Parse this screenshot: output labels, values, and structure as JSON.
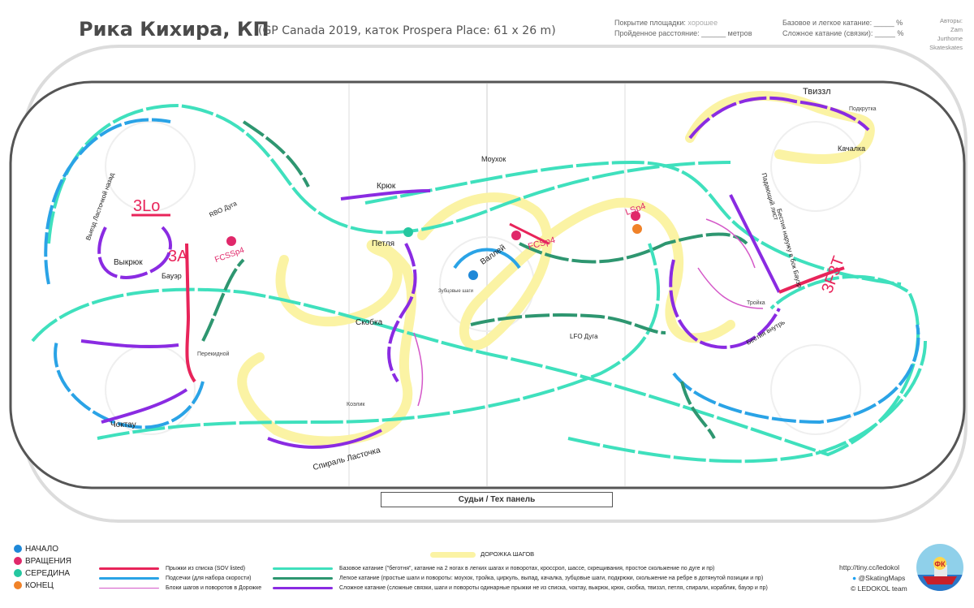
{
  "header": {
    "title": "Рика Кихира, КП",
    "subtitle": "(GP Canada 2019, каток Prospera Place: 61 x 26 m)"
  },
  "meta": {
    "ice_label": "Покрытие площадки:",
    "ice_value": "хорошее",
    "distance": "Пройденное расстояние: ______ метров",
    "basic": "Базовое и легкое катание: _____ %",
    "complex": "Сложное катание (связки): _____ %"
  },
  "authors": {
    "label": "Авторы:",
    "names": [
      "Zam",
      "Jurthome",
      "Skateskates"
    ]
  },
  "judges": "Судьи / Тех панель",
  "elements": {
    "jumps": [
      "3Lo",
      "3A",
      "3F3T"
    ],
    "spins": [
      "FCSSp4",
      "FCSp4",
      "LSp4"
    ],
    "step_labels": [
      "Моухок",
      "Твиззл",
      "Подкрутка",
      "Чоктау",
      "Петля",
      "Качалка",
      "Бауэр",
      "Крюк",
      "Выкрюк",
      "Скобка",
      "Тройка",
      "Коэлик",
      "Валлей",
      "Зубцовые шаги",
      "Выезд Ласточкой назад",
      "RBO Дуга",
      "LFO Дуга",
      "Падающий лист",
      "Бестия наружу в бок Бауэр",
      "Бестия внутрь",
      "Спираль Ласточка",
      "Перекидной"
    ]
  },
  "legend": {
    "markers": [
      {
        "label": "НАЧАЛО",
        "color": "#1e88d8"
      },
      {
        "label": "ВРАЩЕНИЯ",
        "color": "#e0286a"
      },
      {
        "label": "СЕРЕДИНА",
        "color": "#25c7a0"
      },
      {
        "label": "КОНЕЦ",
        "color": "#f08228"
      }
    ],
    "step_sequence": "ДОРОЖКА ШАГОВ",
    "lines_left": [
      {
        "label": "Прыжки из списка (SOV listed)",
        "color": "#e8245a"
      },
      {
        "label": "Подсечки (для набора скорости)",
        "color": "#2aa3e6"
      },
      {
        "label": "Блоки шагов и поворотов в Дорожке",
        "color": "#d458c8"
      }
    ],
    "lines_right": [
      {
        "label": "Базовое катание (\"беготня\", катание на 2 ногах в легких шагах и поворотах, кроссрол, шассе, скрещивания, простое скольжение по дуге и пр)",
        "color": "#3fe0bd"
      },
      {
        "label": "Легкое катание (простые шаги и повороты: моухок, тройка, циркуль, выпад, качалка, зубцовые шаги, подкрюки, скольжение на ребре в дотянутой позиции и пр)",
        "color": "#2e9670"
      },
      {
        "label": "Сложное катание (сложные связки, шаги и повороты   одинарные прыжки не из списка, чоктау, выкрюк, крюк, скобка, твиззл, петля, спирали, кораблик, бауэр и пр)",
        "color": "#8a2be2"
      }
    ]
  },
  "footer": {
    "link": "http://tiny.cc/ledokol",
    "twitter": "@SkatingMaps",
    "team": "© LEDOKOL team",
    "logo_text": "ФК"
  },
  "colors": {
    "jump": "#e8245a",
    "stroke": "#2aa3e6",
    "basic": "#3fe0bd",
    "easy": "#2e9670",
    "hard": "#8a2be2",
    "seq": "#fbf3a4"
  }
}
